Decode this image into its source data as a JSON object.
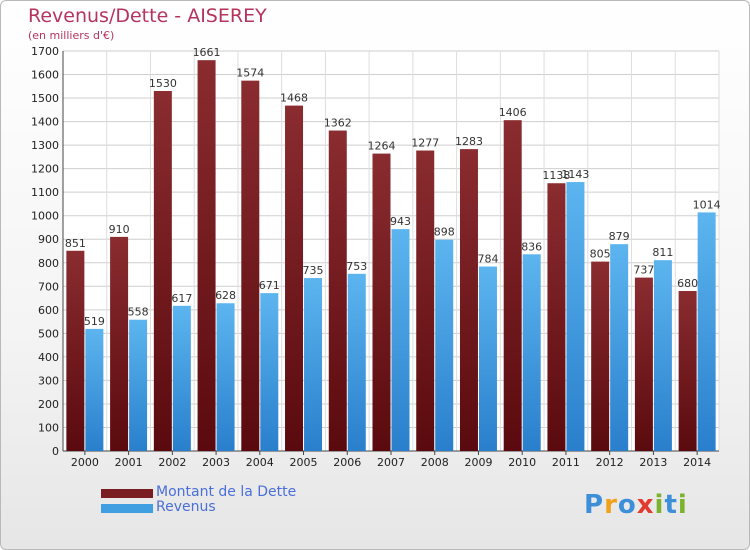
{
  "chart_data": {
    "type": "bar",
    "title": "Revenus/Dette - AISEREY",
    "subtitle": "(en milliers d'€)",
    "categories": [
      "2000",
      "2001",
      "2002",
      "2003",
      "2004",
      "2005",
      "2006",
      "2007",
      "2008",
      "2009",
      "2010",
      "2011",
      "2012",
      "2013",
      "2014"
    ],
    "series": [
      {
        "name": "Montant de la Dette",
        "color": "#7a1d22",
        "values": [
          851,
          910,
          1530,
          1661,
          1574,
          1468,
          1362,
          1264,
          1277,
          1283,
          1406,
          1138,
          805,
          737,
          680
        ]
      },
      {
        "name": "Revenus",
        "color": "#3f9fe0",
        "values": [
          519,
          558,
          617,
          628,
          671,
          735,
          753,
          943,
          898,
          784,
          836,
          1143,
          879,
          811,
          1014
        ]
      }
    ],
    "ylim": [
      0,
      1700
    ],
    "yticks": [
      0,
      100,
      200,
      300,
      400,
      500,
      600,
      700,
      800,
      900,
      1000,
      1100,
      1200,
      1300,
      1400,
      1500,
      1600,
      1700
    ],
    "grid": true,
    "legend_position": "bottom-left"
  },
  "logo": {
    "letters": [
      "P",
      "r",
      "o",
      "x",
      "i",
      "t",
      "i"
    ],
    "colors": [
      "#3c8fd8",
      "#f0a21c",
      "#3c8fd8",
      "#e23a2e",
      "#7bb32e",
      "#3c8fd8",
      "#7bb32e"
    ]
  }
}
